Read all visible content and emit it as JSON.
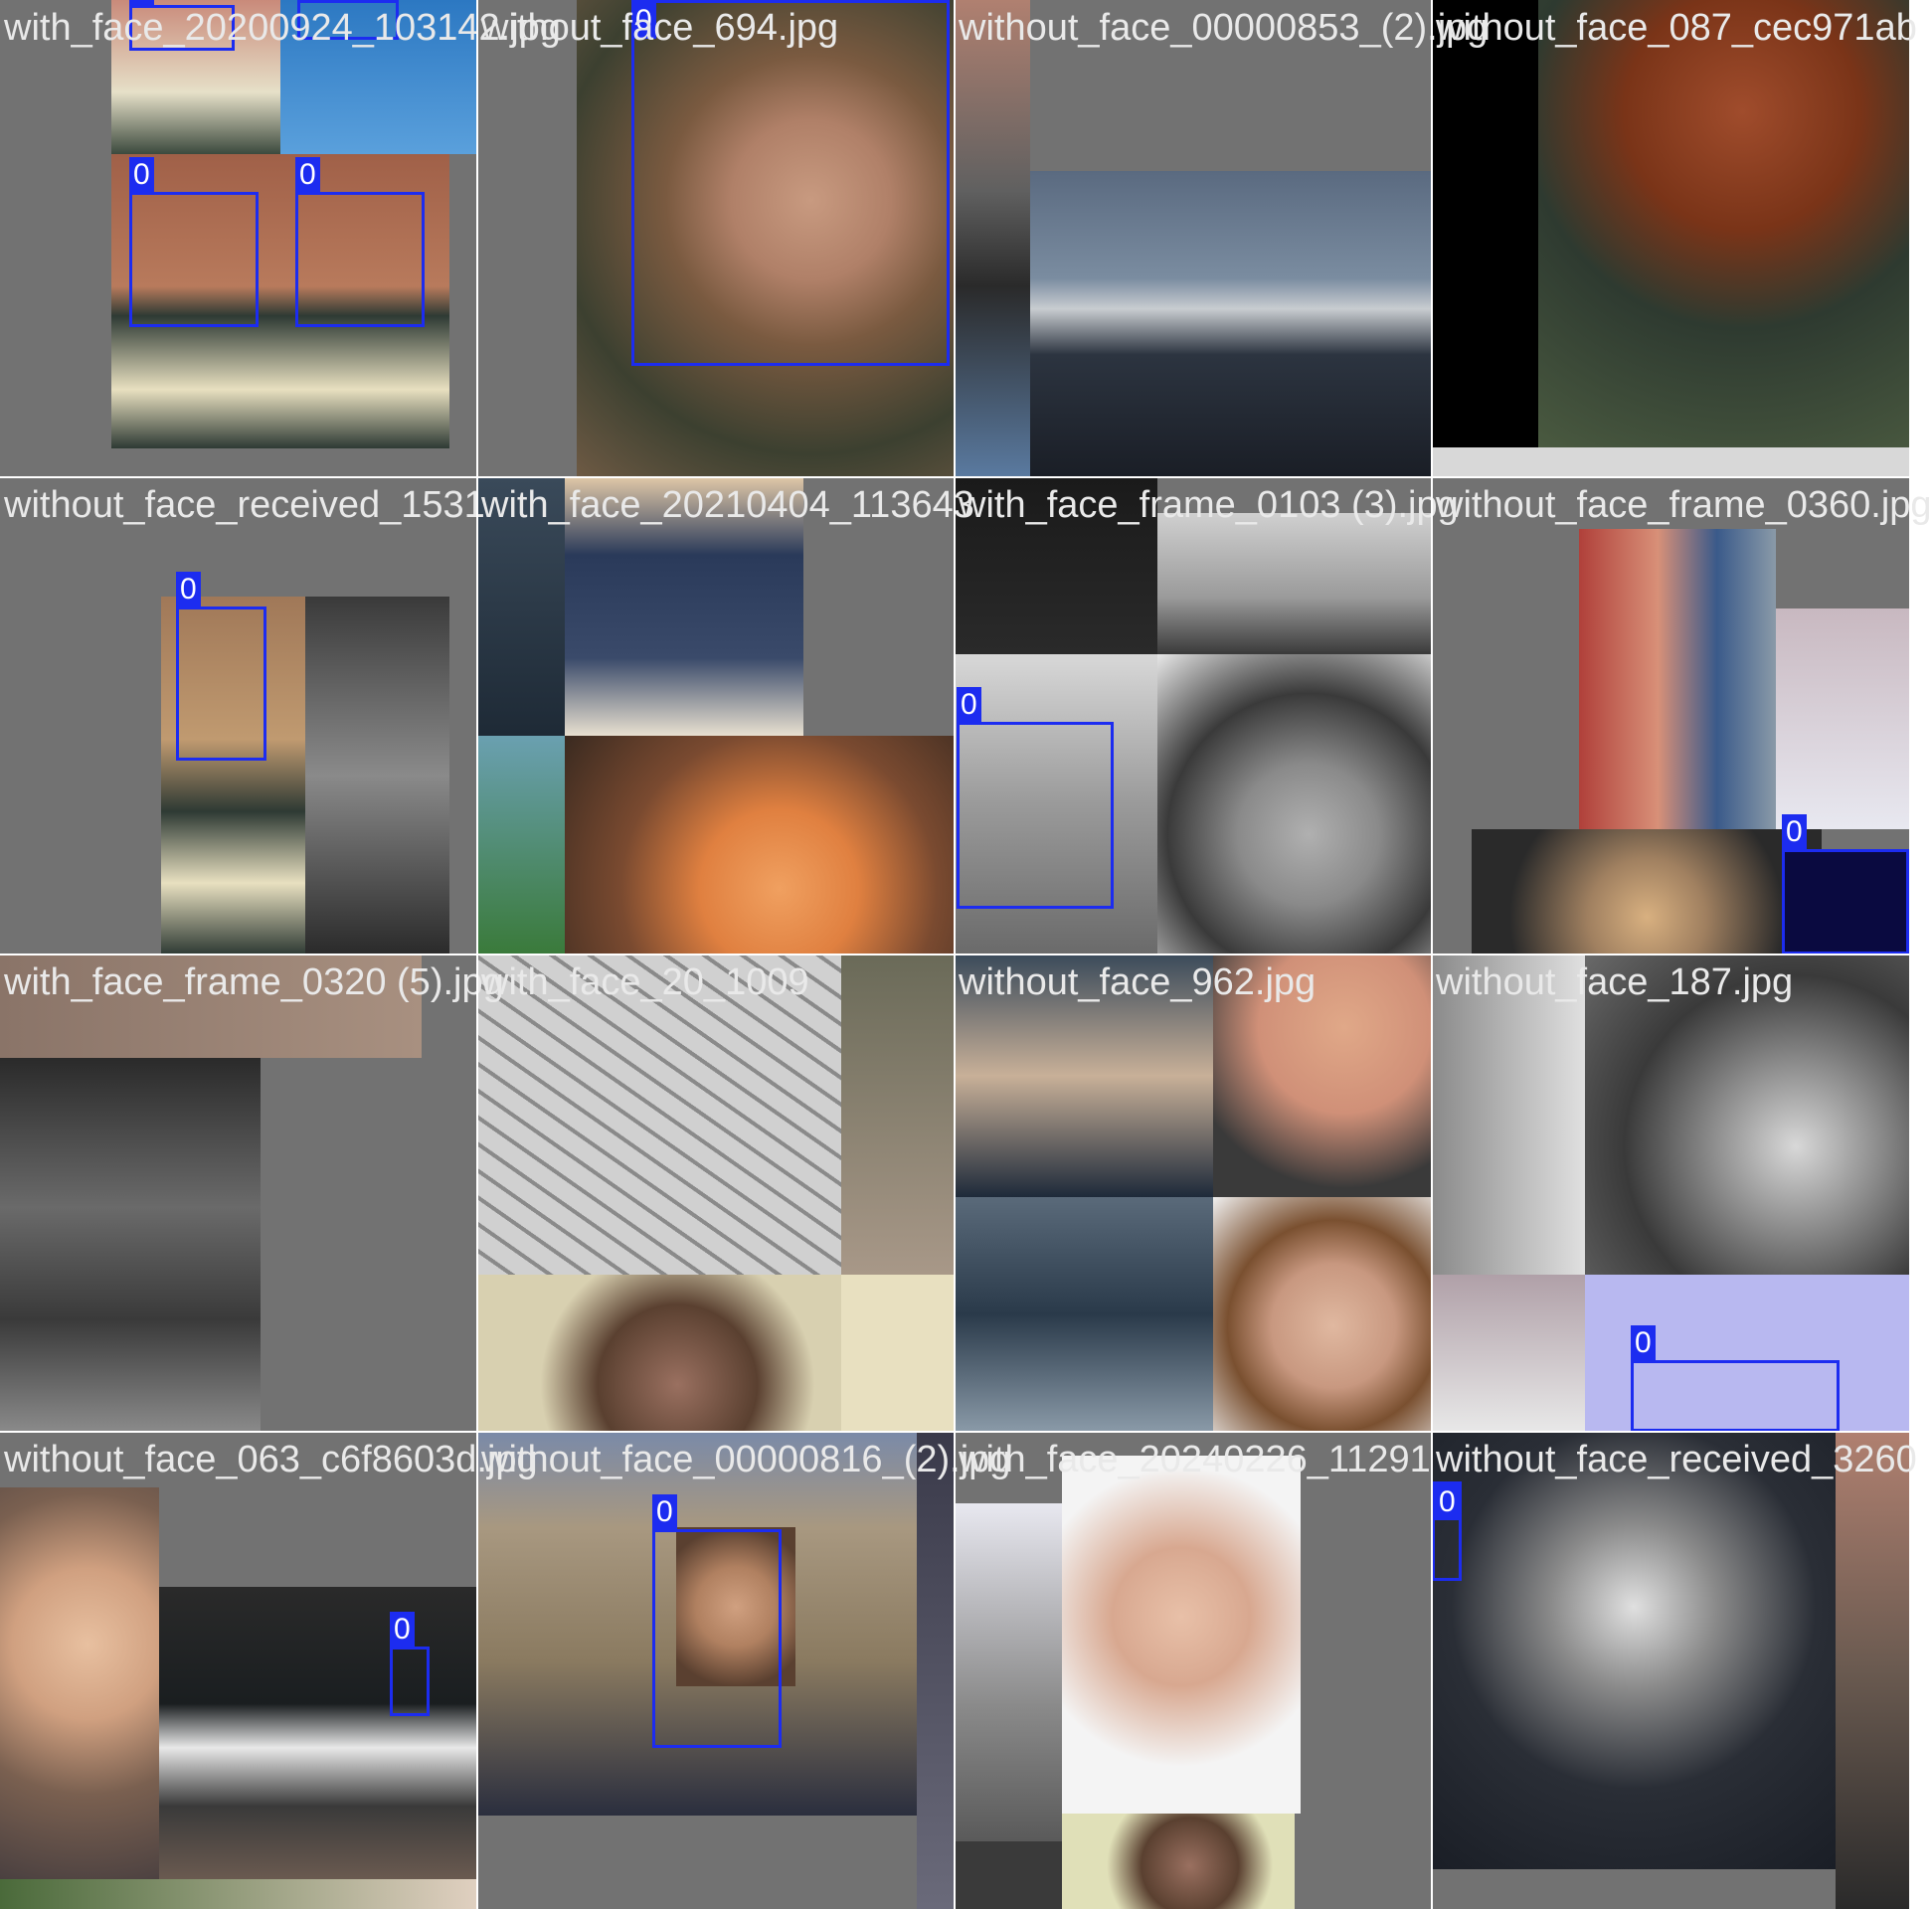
{
  "box_label": "0",
  "box_color": "#1c2cf0",
  "tiles": [
    {
      "caption": "with_face_20200924_103142.jpg"
    },
    {
      "caption": "without_face_694.jpg"
    },
    {
      "caption": "without_face_00000853_(2).jpg"
    },
    {
      "caption": "without_face_087_cec971ab"
    },
    {
      "caption": "without_face_received_1531"
    },
    {
      "caption": "with_face_20210404_113643"
    },
    {
      "caption": "with_face_frame_0103 (3).jpg"
    },
    {
      "caption": "without_face_frame_0360.jpg"
    },
    {
      "caption": "with_face_frame_0320 (5).jpg"
    },
    {
      "caption": "with_face_20_1009"
    },
    {
      "caption": "without_face_962.jpg"
    },
    {
      "caption": "without_face_187.jpg"
    },
    {
      "caption": "without_face_063_c6f8603d.jpg"
    },
    {
      "caption": "without_face_00000816_(2).jpg"
    },
    {
      "caption": "with_face_20240226_11291"
    },
    {
      "caption": "without_face_received_3260"
    }
  ]
}
